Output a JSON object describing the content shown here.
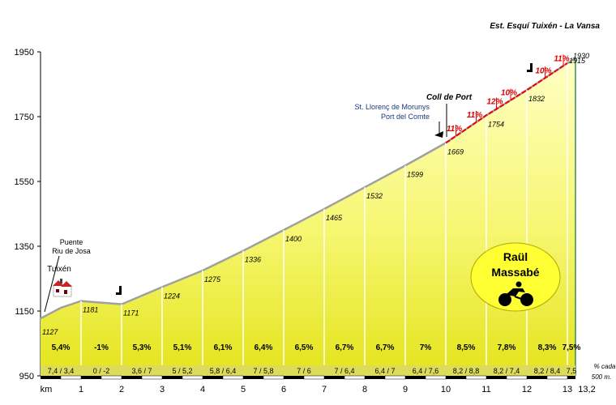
{
  "chart_data": {
    "type": "area",
    "title": "Est. Esquí Tuixén - La Vansa",
    "xlabel": "km",
    "ylabel": "",
    "ylim": [
      950,
      1950
    ],
    "xlim": [
      0,
      13.2
    ],
    "y_ticks": [
      950,
      1150,
      1350,
      1550,
      1750,
      1950
    ],
    "x_ticks": [
      "1",
      "2",
      "3",
      "4",
      "5",
      "6",
      "7",
      "8",
      "9",
      "10",
      "11",
      "12",
      "13",
      "13,2"
    ],
    "profile": {
      "km": [
        0,
        0.5,
        1,
        2,
        3,
        4,
        5,
        6,
        7,
        8,
        9,
        10,
        11,
        12,
        13,
        13.2
      ],
      "alt": [
        1127,
        1160,
        1181,
        1171,
        1224,
        1275,
        1336,
        1400,
        1465,
        1532,
        1599,
        1669,
        1754,
        1832,
        1915,
        1930
      ]
    },
    "altitude_labels": [
      {
        "km": 0,
        "text": "1127"
      },
      {
        "km": 1,
        "text": "1181"
      },
      {
        "km": 2,
        "text": "1171"
      },
      {
        "km": 3,
        "text": "1224"
      },
      {
        "km": 4,
        "text": "1275"
      },
      {
        "km": 5,
        "text": "1336"
      },
      {
        "km": 6,
        "text": "1400"
      },
      {
        "km": 7,
        "text": "1465"
      },
      {
        "km": 8,
        "text": "1532"
      },
      {
        "km": 9,
        "text": "1599"
      },
      {
        "km": 10,
        "text": "1669"
      },
      {
        "km": 11,
        "text": "1754"
      },
      {
        "km": 12,
        "text": "1832"
      },
      {
        "km": 13,
        "text": "1915"
      },
      {
        "km": 13.2,
        "text": "1930"
      }
    ],
    "gradients": [
      "5,4%",
      "-1%",
      "5,3%",
      "5,1%",
      "6,1%",
      "6,4%",
      "6,5%",
      "6,7%",
      "6,7%",
      "7%",
      "8,5%",
      "7,8%",
      "8,3%",
      "7,5%"
    ],
    "sub_gradients": [
      "7,4 / 3,4",
      "0  /  -2",
      "3,6  /  7",
      "5  /  5,2",
      "5,8 / 6,4",
      "7  /  5,8",
      "7  /  6",
      "7  /  6,4",
      "6,4  /  7",
      "6,4 / 7,6",
      "8,2 / 8,8",
      "8,2 / 7,4",
      "8,2 / 8,4",
      "7,5"
    ],
    "sub_note": [
      "% cada",
      "500 m."
    ],
    "steep_sections": [
      {
        "km": 10.25,
        "text": "11%"
      },
      {
        "km": 10.75,
        "text": "11%"
      },
      {
        "km": 11.25,
        "text": "12%"
      },
      {
        "km": 11.6,
        "text": "10%"
      },
      {
        "km": 12.45,
        "text": "10%"
      },
      {
        "km": 12.9,
        "text": "11%"
      }
    ],
    "annotations": {
      "start_place": "Tuixén",
      "start_point": [
        "Puente",
        "Riu de Josa"
      ],
      "pass_name": "Coll de Port",
      "junction": [
        "St. Llorenç de Morunys",
        "Port del Comte"
      ],
      "author": [
        "Raül",
        "Massabé"
      ]
    },
    "colors": {
      "fill_top": "#ffffbf",
      "fill_bottom": "#e8e818",
      "profile_line": "#a0a0a0",
      "steep_line": "#ee0000",
      "author_badge": "#ffff33",
      "grid": "#bbbbbb"
    }
  }
}
